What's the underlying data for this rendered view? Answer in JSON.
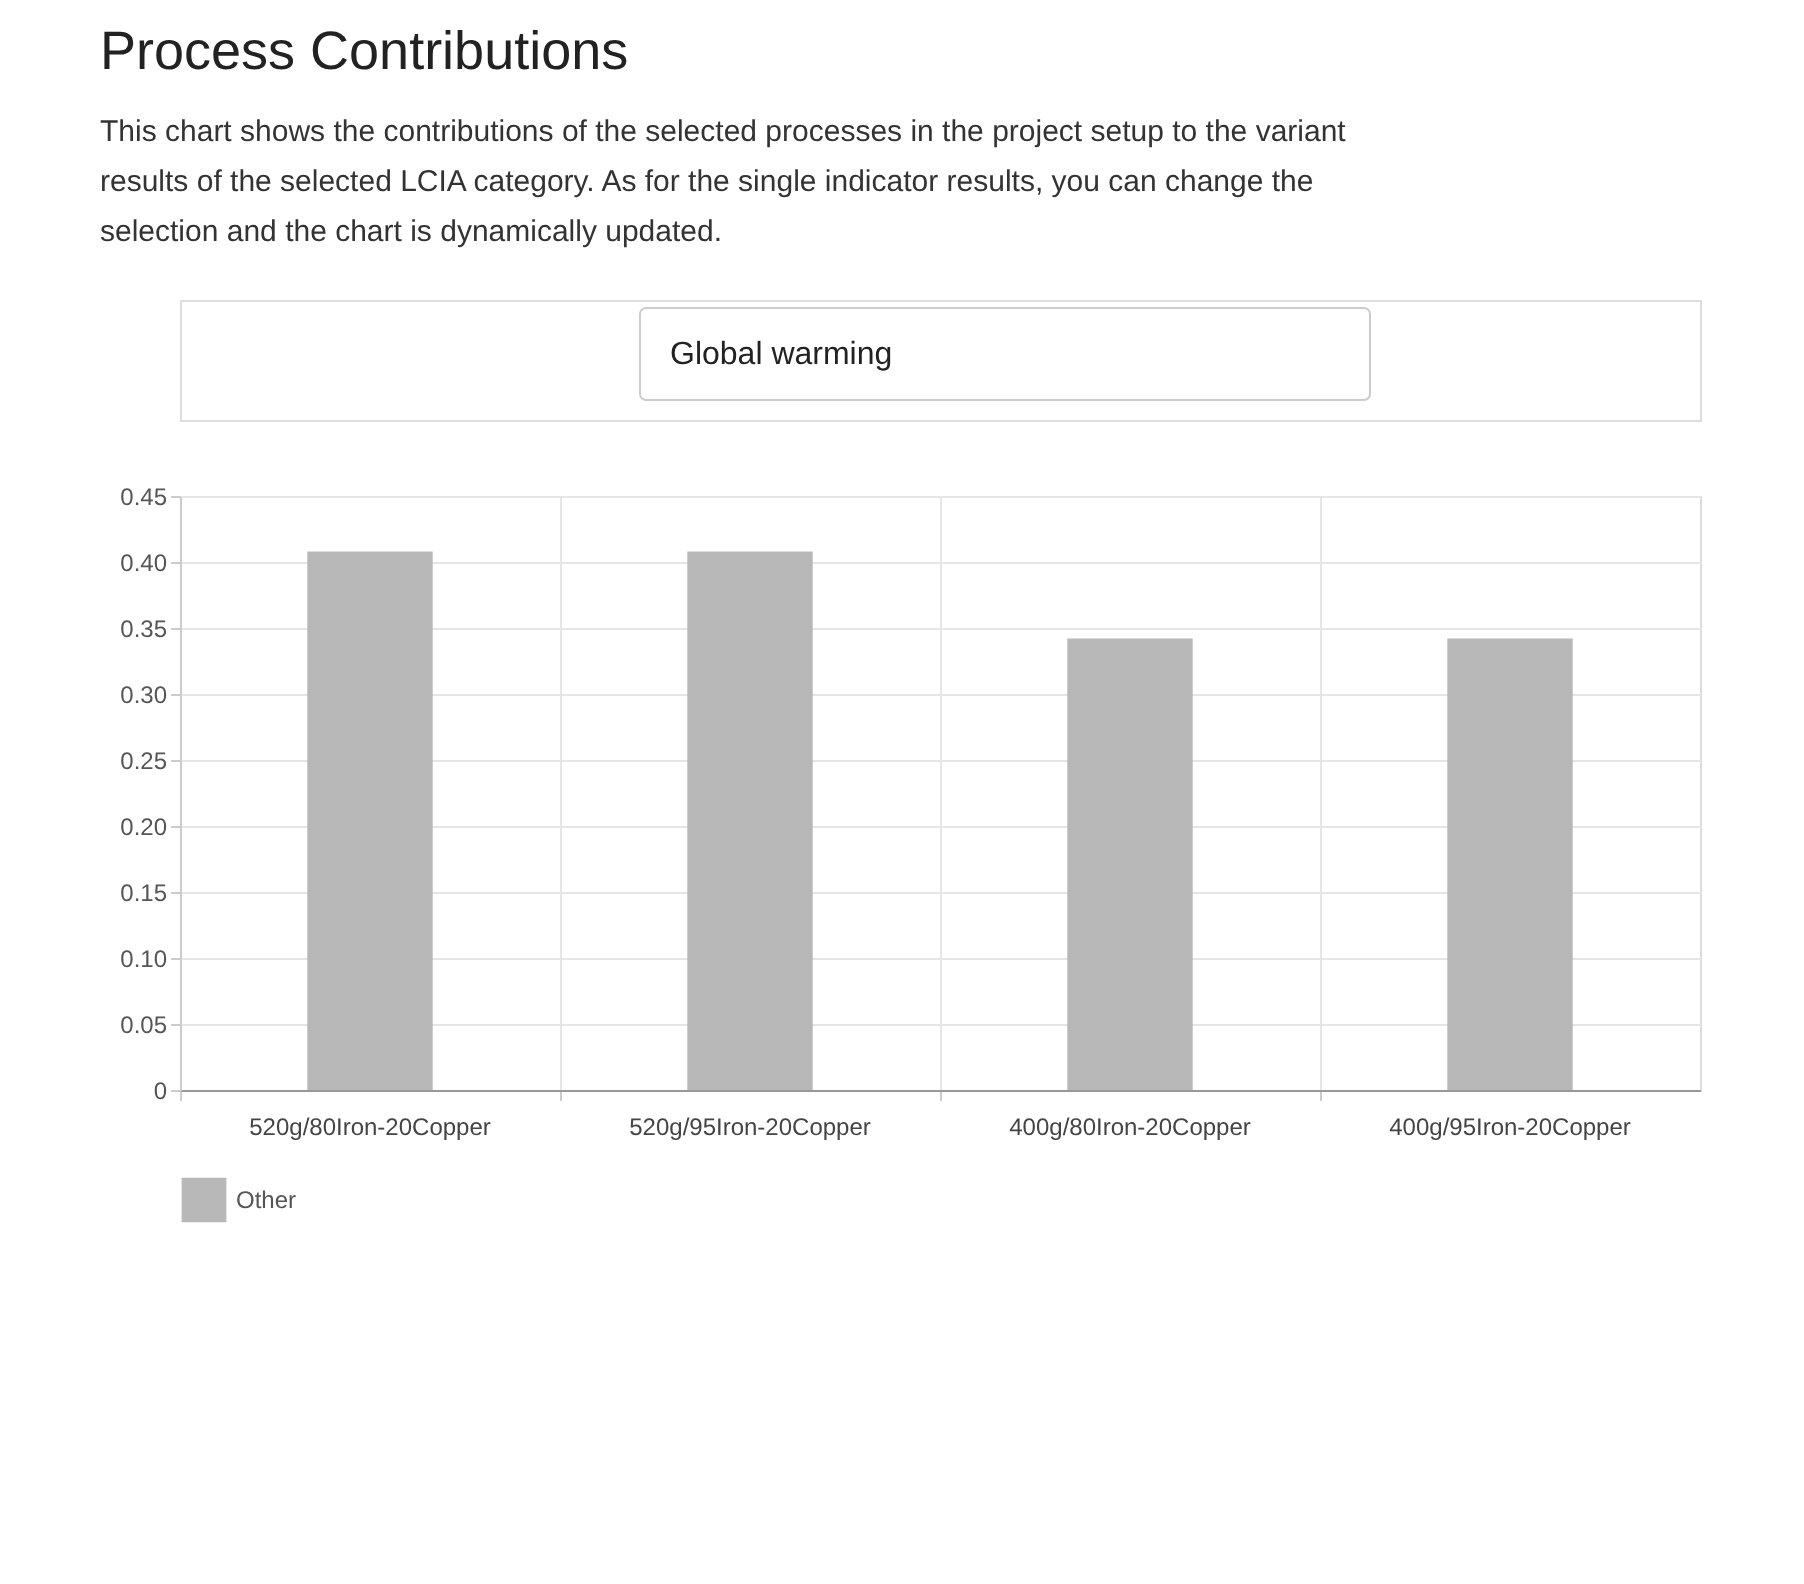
{
  "chart_data": {
    "type": "bar",
    "title": "Process Contributions",
    "subtitle": "This chart shows the contributions of the selected processes in the project setup to the variant results of the selected LCIA category. As for the single indicator results, you can change the selection and the chart is dynamically updated.",
    "annotations": [
      "Global warming"
    ],
    "categories": [
      "520g/80Iron-20Copper",
      "520g/95Iron-20Copper",
      "400g/80Iron-20Copper",
      "400g/95Iron-20Copper"
    ],
    "series": [
      {
        "name": "Other",
        "color": "#b8b8b8",
        "values": [
          0.408,
          0.408,
          0.342,
          0.342
        ]
      }
    ],
    "ylim": [
      0,
      0.45
    ],
    "yticks": [
      0,
      {
        "value": 0.05,
        "label": "0.05"
      },
      {
        "value": 0.1,
        "label": "0.10"
      },
      {
        "value": 0.15,
        "label": "0.15"
      },
      {
        "value": 0.2,
        "label": "0.20"
      },
      {
        "value": 0.25,
        "label": "0.25"
      },
      {
        "value": 0.3,
        "label": "0.30"
      },
      {
        "value": 0.35,
        "label": "0.35"
      },
      {
        "value": 0.4,
        "label": "0.40"
      },
      {
        "value": 0.45,
        "label": "0.45"
      }
    ],
    "grid": true,
    "legend": "bottom"
  }
}
